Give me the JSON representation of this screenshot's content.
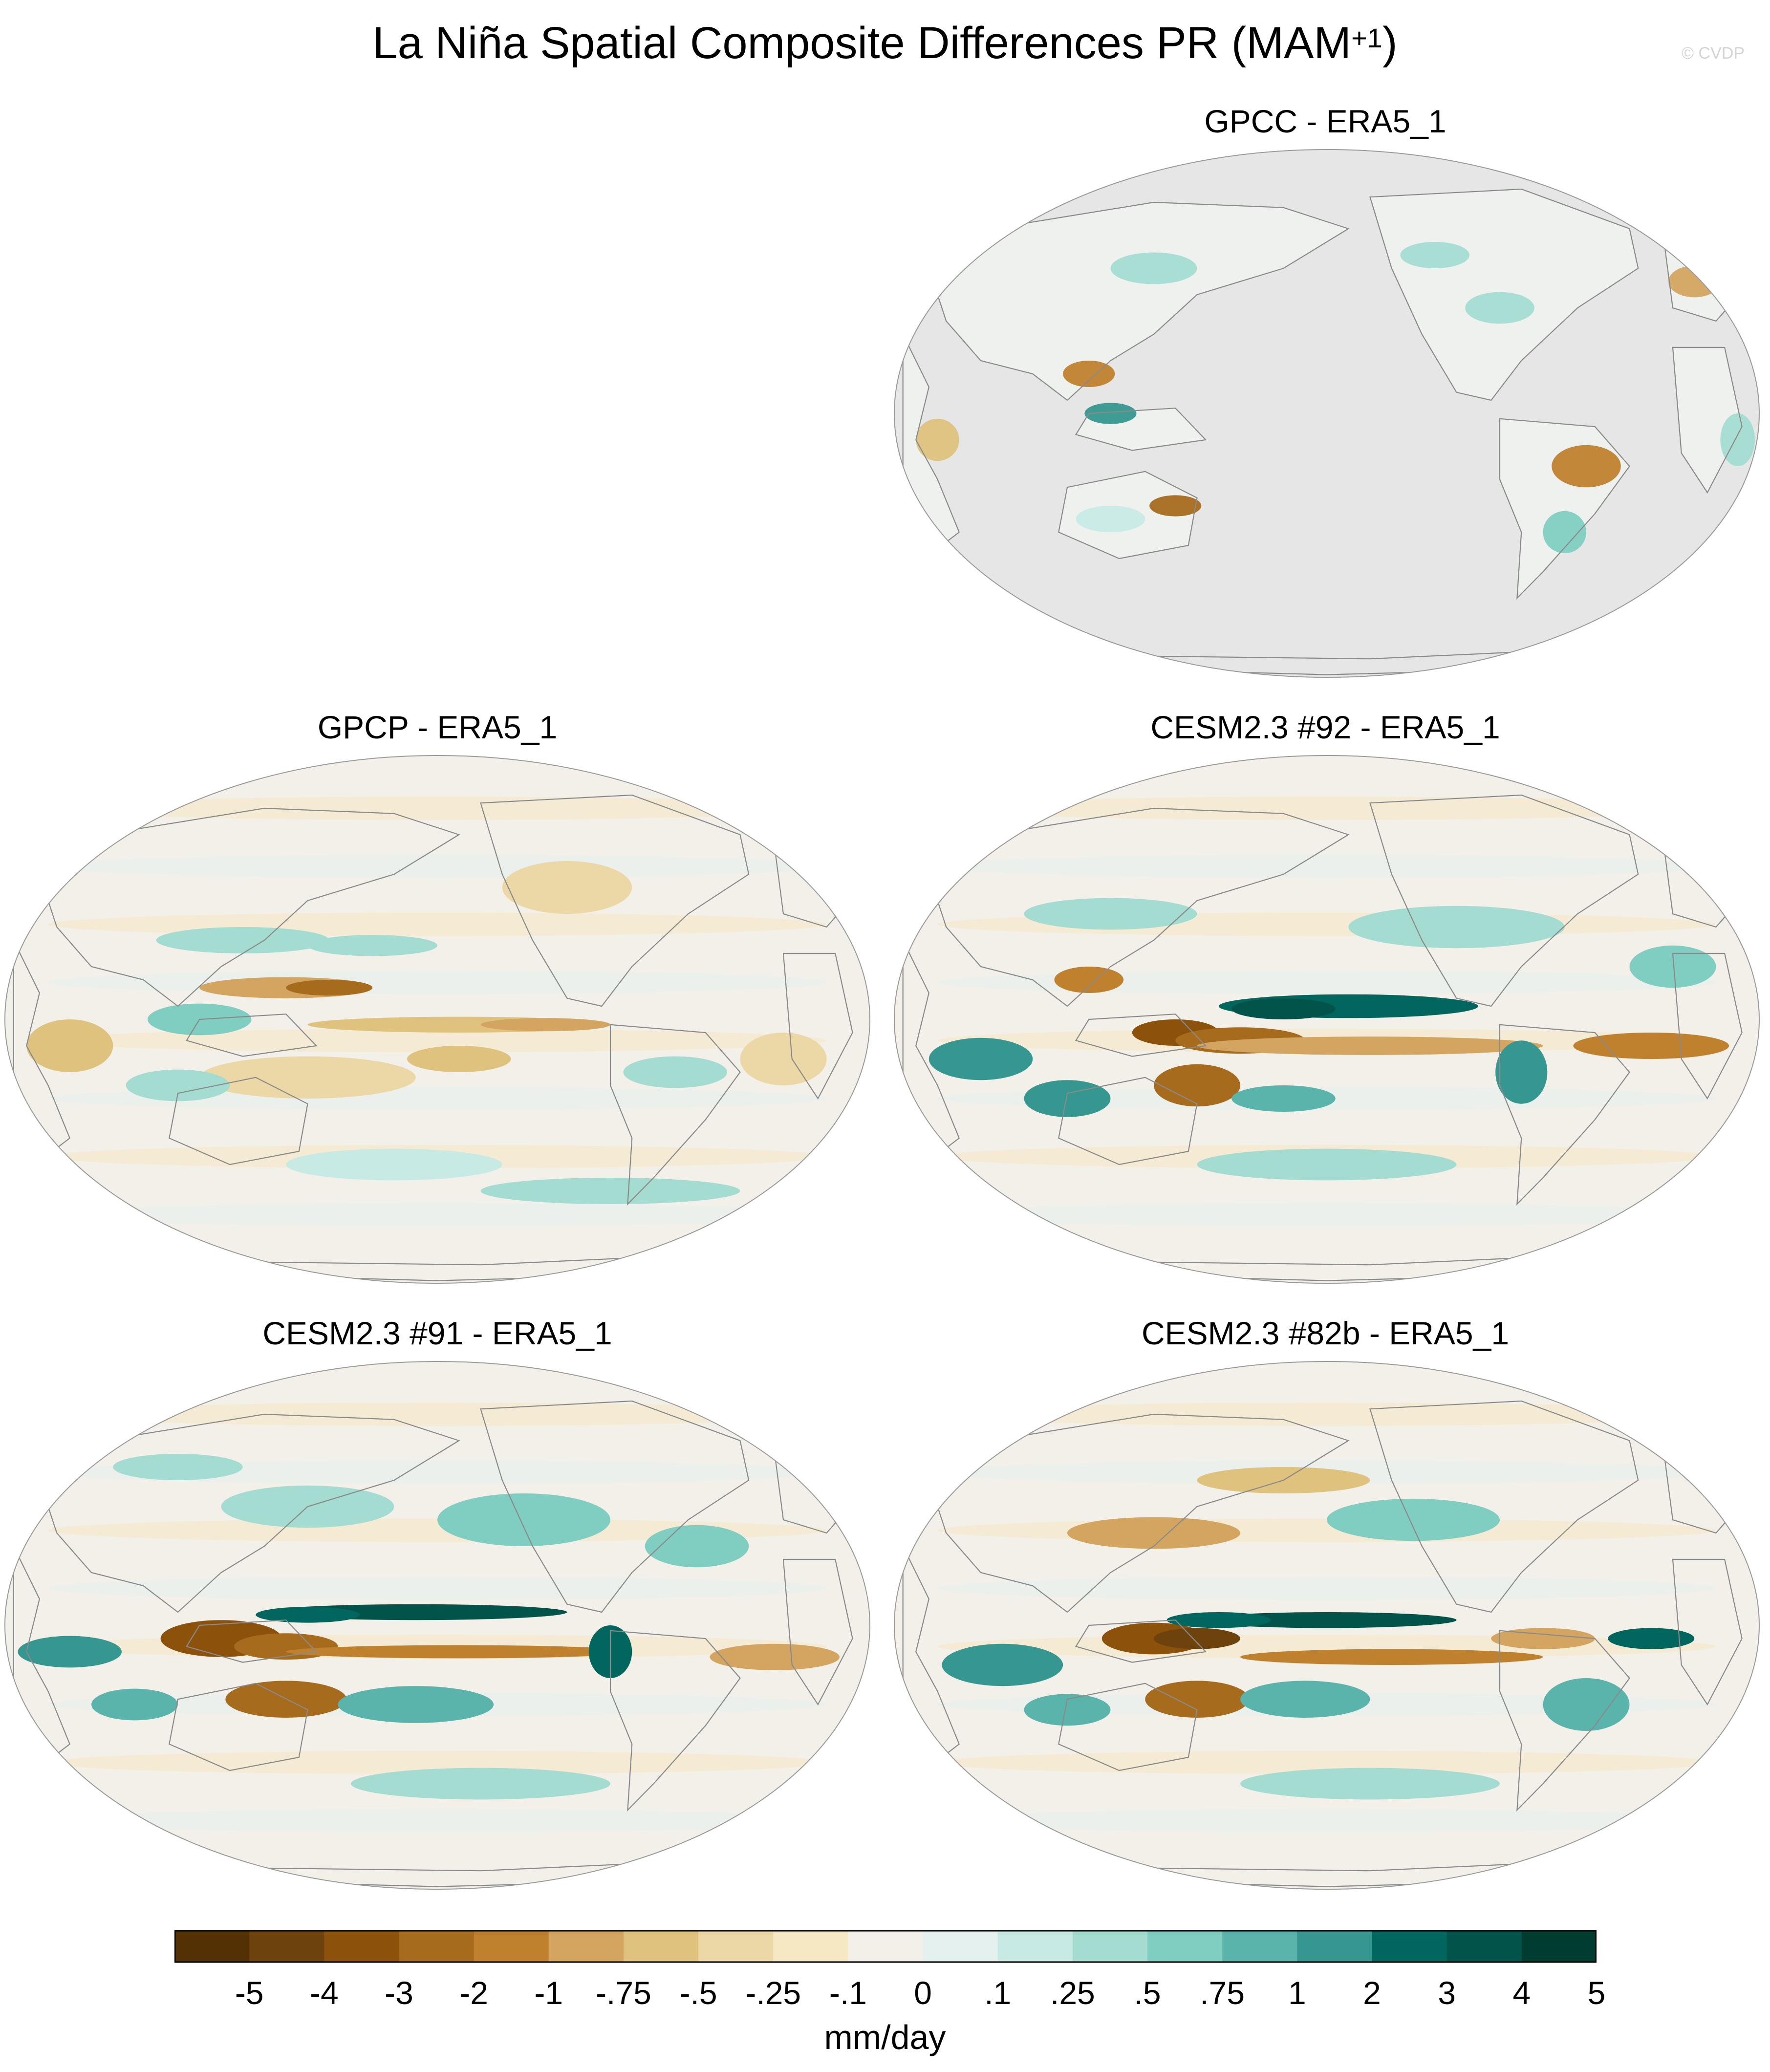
{
  "figure": {
    "title": "La Niña Spatial Composite Differences PR (MAM",
    "title_sup": "+1",
    "title_close": ")",
    "watermark": "© CVDP"
  },
  "panels": [
    {
      "id": "gpcc",
      "title": "GPCC - ERA5_1",
      "land_only": true
    },
    {
      "id": "gpcp",
      "title": "GPCP - ERA5_1",
      "land_only": false
    },
    {
      "id": "cesm92",
      "title": "CESM2.3 #92 - ERA5_1",
      "land_only": false
    },
    {
      "id": "cesm91",
      "title": "CESM2.3 #91 - ERA5_1",
      "land_only": false
    },
    {
      "id": "cesm82b",
      "title": "CESM2.3 #82b - ERA5_1",
      "land_only": false
    }
  ],
  "colorbar": {
    "units": "mm/day",
    "labels": [
      "-5",
      "-4",
      "-3",
      "-2",
      "-1",
      "-.75",
      "-.5",
      "-.25",
      "-.1",
      "0",
      ".1",
      ".25",
      ".5",
      ".75",
      "1",
      "2",
      "3",
      "4",
      "5"
    ],
    "colors": [
      "#543005",
      "#6e420c",
      "#8c510a",
      "#a76b1e",
      "#bf812d",
      "#d3a560",
      "#dfc27d",
      "#ecd8a7",
      "#f6e8c3",
      "#f3f0ea",
      "#e4f1ee",
      "#c7eae5",
      "#a4dcd2",
      "#80cdc1",
      "#5ab4ac",
      "#35978f",
      "#01665e",
      "#02534a",
      "#003c30"
    ]
  },
  "map": {
    "background_color": "#e6e6e6",
    "neutral_color": "#f3f0ea"
  }
}
